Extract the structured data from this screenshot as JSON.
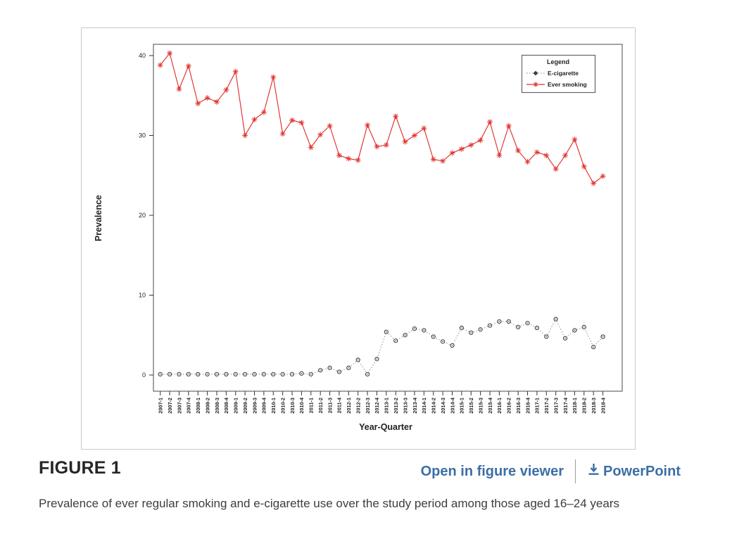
{
  "figure": {
    "heading": "FIGURE 1",
    "caption": "Prevalence of ever regular smoking and e-cigarette use over the study period among those aged 16–24 years"
  },
  "links": {
    "open_viewer_label": "Open in figure viewer",
    "powerpoint_label": "PowerPoint"
  },
  "icons": {
    "download": "arrow-down-to-bar"
  },
  "colors": {
    "smoking_red": "#e0312e",
    "ecig_marker": "#3a3a3a",
    "ecig_line": "#8a8a8a",
    "link_blue": "#3c6fa5",
    "figure_border": "#c9c9c9",
    "axis_text": "#222222"
  },
  "chart_data": {
    "type": "line",
    "title": "",
    "xlabel": "Year-Quarter",
    "ylabel": "Prevalence",
    "ylim": [
      0,
      40
    ],
    "y_ticks": [
      0,
      10,
      20,
      30,
      40
    ],
    "grid": false,
    "legend": {
      "title": "Legend",
      "position": "top-right"
    },
    "categories": [
      "2007-1",
      "2007-2",
      "2007-3",
      "2007-4",
      "2008-1",
      "2008-2",
      "2008-3",
      "2008-4",
      "2009-1",
      "2009-2",
      "2009-3",
      "2009-4",
      "2010-1",
      "2010-2",
      "2010-3",
      "2010-4",
      "2011-1",
      "2011-2",
      "2011-3",
      "2011-4",
      "2012-1",
      "2012-2",
      "2012-3",
      "2012-4",
      "2013-1",
      "2013-2",
      "2013-3",
      "2013-4",
      "2014-1",
      "2014-2",
      "2014-3",
      "2014-4",
      "2015-1",
      "2015-2",
      "2015-3",
      "2015-4",
      "2016-1",
      "2016-2",
      "2016-3",
      "2016-4",
      "2017-1",
      "2017-2",
      "2017-3",
      "2017-4",
      "2018-1",
      "2018-2",
      "2018-3",
      "2018-4"
    ],
    "series": [
      {
        "name": "E-cigarette",
        "color": "#3a3a3a",
        "line_color": "#8a8a8a",
        "line_style": "dotted",
        "marker": "circle-plus",
        "values": [
          0.1,
          0.1,
          0.1,
          0.1,
          0.1,
          0.1,
          0.1,
          0.1,
          0.1,
          0.1,
          0.1,
          0.1,
          0.1,
          0.1,
          0.1,
          0.2,
          0.1,
          0.6,
          0.9,
          0.4,
          0.9,
          1.9,
          0.1,
          2.0,
          5.4,
          4.3,
          5.0,
          5.8,
          5.6,
          4.8,
          4.2,
          3.7,
          5.9,
          5.3,
          5.7,
          6.2,
          6.7,
          6.7,
          6.0,
          6.5,
          5.9,
          4.8,
          7.0,
          4.6,
          5.6,
          6.0,
          3.5,
          4.8
        ]
      },
      {
        "name": "Ever smoking",
        "color": "#e0312e",
        "line_color": "#e0312e",
        "line_style": "solid",
        "marker": "asterisk",
        "values": [
          38.8,
          40.3,
          35.8,
          38.7,
          34.0,
          34.7,
          34.2,
          35.7,
          38.0,
          30.0,
          32.0,
          32.9,
          37.3,
          30.2,
          31.9,
          31.6,
          28.5,
          30.1,
          31.2,
          27.5,
          27.1,
          26.9,
          31.3,
          28.6,
          28.8,
          32.4,
          29.2,
          30.0,
          30.9,
          27.0,
          26.8,
          27.8,
          28.3,
          28.8,
          29.4,
          31.7,
          27.5,
          31.2,
          28.1,
          26.7,
          27.9,
          27.5,
          25.8,
          27.5,
          29.5,
          26.1,
          24.0,
          24.9
        ]
      }
    ]
  }
}
